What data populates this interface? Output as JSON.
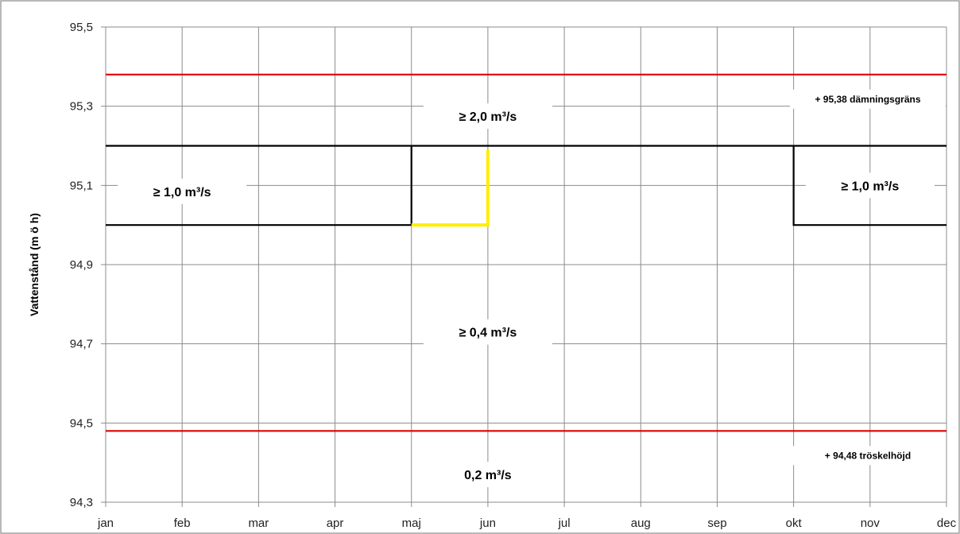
{
  "chart_data": {
    "type": "line",
    "title": "",
    "xlabel": "",
    "ylabel": "Vattenstånd (m ö h)",
    "x_categories": [
      "jan",
      "feb",
      "mar",
      "apr",
      "maj",
      "jun",
      "jul",
      "aug",
      "sep",
      "okt",
      "nov",
      "dec"
    ],
    "y_ticks": [
      "94,3",
      "94,5",
      "94,7",
      "94,9",
      "95,1",
      "95,3",
      "95,5"
    ],
    "y_tick_values": [
      94.3,
      94.5,
      94.7,
      94.9,
      95.1,
      95.3,
      95.5
    ],
    "ylim": [
      94.3,
      95.5
    ],
    "grid": true,
    "reference_lines": [
      {
        "label": "+ 95,38 dämningsgräns",
        "y": 95.38,
        "color": "#e00000"
      },
      {
        "label": "+ 94,48 tröskelhöjd",
        "y": 94.48,
        "color": "#e00000"
      }
    ],
    "series": [
      {
        "color": "#000000",
        "points": [
          [
            "jan",
            95.2
          ],
          [
            "maj",
            95.2
          ],
          [
            "jun",
            95.2
          ],
          [
            "okt",
            95.2
          ],
          [
            "dec",
            95.2
          ]
        ]
      },
      {
        "color": "#000000",
        "points": [
          [
            "jan",
            95.0
          ],
          [
            "maj",
            95.0
          ],
          [
            "maj",
            95.2
          ]
        ]
      },
      {
        "color": "#000000",
        "points": [
          [
            "okt",
            95.2
          ],
          [
            "okt",
            95.0
          ],
          [
            "dec",
            95.0
          ]
        ]
      },
      {
        "color": "#ffee00",
        "points": [
          [
            "maj",
            95.0
          ],
          [
            "jun",
            95.0
          ],
          [
            "jun",
            95.19
          ]
        ]
      }
    ],
    "annotations": [
      {
        "text": "≥ 2,0 m³/s",
        "x": "jun",
        "y": 95.275
      },
      {
        "text": "≥ 1,0 m³/s",
        "x": "feb",
        "y": 95.085
      },
      {
        "text": "≥ 1,0 m³/s",
        "x": "nov",
        "y": 95.1
      },
      {
        "text": "≥ 0,4 m³/s",
        "x": "jun",
        "y": 94.73
      },
      {
        "text": "0,2 m³/s",
        "x": "jun",
        "y": 94.37
      }
    ]
  }
}
